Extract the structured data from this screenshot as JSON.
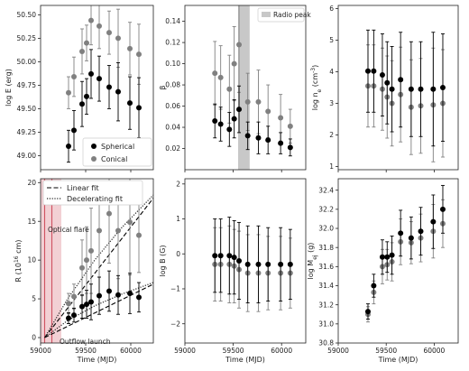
{
  "chart_data": [
    {
      "type": "scatter",
      "panel": "top-left",
      "xlim": [
        59000,
        60250
      ],
      "ylim": [
        48.85,
        50.6
      ],
      "ylabel": "log E (erg)",
      "xlabel": "",
      "yticks": [
        "49.00",
        "49.25",
        "49.50",
        "49.75",
        "50.00",
        "50.25",
        "50.50"
      ],
      "ytick_values": [
        49.0,
        49.25,
        49.5,
        49.75,
        50.0,
        50.25,
        50.5
      ],
      "xticks": [],
      "legend": {
        "position": "bottom-right",
        "entries": [
          "Spherical",
          "Conical"
        ]
      },
      "series": [
        {
          "name": "Spherical",
          "color": "#000000",
          "x": [
            59310,
            59370,
            59460,
            59510,
            59560,
            59650,
            59760,
            59860,
            59990,
            60090
          ],
          "y": [
            49.1,
            49.27,
            49.55,
            49.63,
            49.87,
            49.82,
            49.73,
            49.68,
            49.56,
            49.51
          ],
          "err": [
            0.17,
            0.21,
            0.24,
            0.19,
            0.26,
            0.24,
            0.23,
            0.31,
            0.28,
            0.32
          ]
        },
        {
          "name": "Conical",
          "color": "#808080",
          "x": [
            59310,
            59370,
            59460,
            59510,
            59560,
            59650,
            59760,
            59860,
            59990,
            60090
          ],
          "y": [
            49.67,
            49.84,
            50.11,
            50.2,
            50.44,
            50.38,
            50.31,
            50.25,
            50.14,
            50.08
          ],
          "err": [
            0.17,
            0.21,
            0.24,
            0.19,
            0.26,
            0.24,
            0.23,
            0.31,
            0.28,
            0.32
          ]
        }
      ]
    },
    {
      "type": "scatter",
      "panel": "top-middle",
      "xlim": [
        59000,
        60250
      ],
      "ylim": [
        0.0,
        0.155
      ],
      "ylabel": "β",
      "xlabel": "",
      "yticks": [
        "0.02",
        "0.04",
        "0.06",
        "0.08",
        "0.10",
        "0.12",
        "0.14"
      ],
      "ytick_values": [
        0.02,
        0.04,
        0.06,
        0.08,
        0.1,
        0.12,
        0.14
      ],
      "xticks": [],
      "band": {
        "x0": 59550,
        "x1": 59670,
        "color": "#c8c8c8",
        "label": "Radio peak"
      },
      "legend": {
        "position": "top-right",
        "entries": [
          "Radio peak"
        ]
      },
      "series": [
        {
          "name": "Spherical",
          "color": "#000000",
          "x": [
            59310,
            59370,
            59460,
            59510,
            59560,
            59650,
            59760,
            59860,
            59990,
            60090
          ],
          "y": [
            0.046,
            0.043,
            0.038,
            0.048,
            0.057,
            0.032,
            0.03,
            0.028,
            0.025,
            0.021
          ],
          "err": [
            0.016,
            0.016,
            0.016,
            0.018,
            0.022,
            0.013,
            0.015,
            0.013,
            0.01,
            0.008
          ]
        },
        {
          "name": "Conical",
          "color": "#808080",
          "x": [
            59310,
            59370,
            59460,
            59510,
            59560,
            59650,
            59760,
            59860,
            59990,
            60090
          ],
          "y": [
            0.091,
            0.087,
            0.076,
            0.1,
            0.118,
            0.064,
            0.064,
            0.055,
            0.049,
            0.041
          ],
          "err": [
            0.03,
            0.03,
            0.032,
            0.035,
            0.045,
            0.027,
            0.03,
            0.025,
            0.022,
            0.016
          ]
        }
      ]
    },
    {
      "type": "scatter",
      "panel": "top-right",
      "xlim": [
        59000,
        60250
      ],
      "ylim": [
        0.9,
        6.1
      ],
      "ylabel": "log n_e (cm^-3)",
      "xlabel": "",
      "yticks": [
        "1",
        "2",
        "3",
        "4",
        "5",
        "6"
      ],
      "ytick_values": [
        1,
        2,
        3,
        4,
        5,
        6
      ],
      "xticks": [],
      "series": [
        {
          "name": "Spherical",
          "color": "#000000",
          "x": [
            59310,
            59370,
            59460,
            59510,
            59560,
            59650,
            59760,
            59860,
            59990,
            60090
          ],
          "y": [
            4.02,
            4.02,
            3.9,
            3.65,
            3.45,
            3.75,
            3.45,
            3.45,
            3.45,
            3.5
          ],
          "err": [
            1.3,
            1.3,
            1.3,
            1.3,
            1.35,
            1.5,
            1.5,
            1.5,
            1.8,
            1.7
          ]
        },
        {
          "name": "Conical",
          "color": "#808080",
          "x": [
            59310,
            59370,
            59460,
            59510,
            59560,
            59650,
            59760,
            59860,
            59990,
            60090
          ],
          "y": [
            3.55,
            3.55,
            3.45,
            3.2,
            3.0,
            3.28,
            2.88,
            2.92,
            2.95,
            3.0
          ],
          "err": [
            1.3,
            1.3,
            1.3,
            1.3,
            1.35,
            1.5,
            1.5,
            1.5,
            1.8,
            1.7
          ]
        }
      ]
    },
    {
      "type": "scatter",
      "panel": "bottom-left",
      "xlim": [
        59000,
        60250
      ],
      "ylim": [
        -0.7,
        20.5
      ],
      "ylabel": "R (10^16 cm)",
      "xlabel": "Time (MJD)",
      "yticks": [
        "0",
        "5",
        "10",
        "15",
        "20"
      ],
      "ytick_values": [
        0,
        5,
        10,
        15,
        20
      ],
      "xticks": [
        "59000",
        "59500",
        "60000"
      ],
      "xtick_values": [
        59000,
        59500,
        60000
      ],
      "band": {
        "x0": 59000,
        "x1": 59230,
        "color": "#f2d0d4"
      },
      "vlines": [
        {
          "x": 59045,
          "color": "#d05060",
          "label": "Outflow launch"
        },
        {
          "x": 59125,
          "color": "#d05060",
          "label": "Optical flare"
        }
      ],
      "legend": {
        "position": "top-left",
        "entries": [
          "Linear fit",
          "Decelerating fit"
        ]
      },
      "series": [
        {
          "name": "Spherical",
          "color": "#000000",
          "x": [
            59310,
            59370,
            59460,
            59510,
            59560,
            59650,
            59760,
            59860,
            59990,
            60090
          ],
          "y": [
            2.5,
            2.9,
            4.0,
            4.3,
            4.6,
            5.4,
            6.0,
            5.5,
            5.7,
            5.2
          ],
          "err": [
            0.7,
            0.9,
            1.5,
            1.8,
            2.3,
            2.4,
            2.6,
            2.5,
            2.6,
            1.9
          ]
        },
        {
          "name": "Conical",
          "color": "#808080",
          "x": [
            59310,
            59370,
            59460,
            59510,
            59560,
            59650,
            59760,
            59860,
            59990,
            60090
          ],
          "y": [
            4.4,
            5.3,
            9.0,
            10.0,
            11.2,
            13.8,
            16.0,
            13.8,
            14.9,
            13.2
          ],
          "err": [
            1.3,
            1.6,
            3.6,
            4.3,
            5.5,
            6.0,
            6.4,
            6.2,
            6.8,
            4.8
          ]
        }
      ],
      "fits": [
        {
          "name": "Linear fit",
          "style": "dashed",
          "points": [
            [
              59045,
              0.0
            ],
            [
              60250,
              6.9
            ]
          ]
        },
        {
          "name": "Linear fit",
          "style": "dashed",
          "points": [
            [
              59045,
              0.0
            ],
            [
              60250,
              18.0
            ]
          ]
        },
        {
          "name": "Decelerating fit",
          "style": "dotted",
          "points": [
            [
              59045,
              0.0
            ],
            [
              59300,
              2.2
            ],
            [
              59600,
              4.1
            ],
            [
              59900,
              5.6
            ],
            [
              60250,
              7.1
            ]
          ]
        },
        {
          "name": "Decelerating fit",
          "style": "dotted",
          "points": [
            [
              59045,
              0.0
            ],
            [
              59300,
              5.0
            ],
            [
              59600,
              10.0
            ],
            [
              59900,
              14.2
            ],
            [
              60250,
              18.4
            ]
          ]
        }
      ]
    },
    {
      "type": "scatter",
      "panel": "bottom-middle",
      "xlim": [
        59000,
        60250
      ],
      "ylim": [
        -2.55,
        2.15
      ],
      "ylabel": "log B (G)",
      "xlabel": "Time (MJD)",
      "yticks": [
        "−2",
        "−1",
        "0",
        "1",
        "2"
      ],
      "ytick_values": [
        -2,
        -1,
        0,
        1,
        2
      ],
      "xticks": [
        "59000",
        "59500",
        "60000"
      ],
      "xtick_values": [
        59000,
        59500,
        60000
      ],
      "series": [
        {
          "name": "Spherical",
          "color": "#000000",
          "x": [
            59310,
            59370,
            59460,
            59510,
            59560,
            59650,
            59760,
            59860,
            59990,
            60090
          ],
          "y": [
            -0.05,
            -0.05,
            -0.05,
            -0.1,
            -0.2,
            -0.3,
            -0.3,
            -0.3,
            -0.3,
            -0.3
          ],
          "err": [
            1.05,
            1.05,
            1.1,
            1.05,
            1.1,
            1.1,
            1.1,
            1.05,
            1.05,
            1.0
          ]
        },
        {
          "name": "Conical",
          "color": "#808080",
          "x": [
            59310,
            59370,
            59460,
            59510,
            59560,
            59650,
            59760,
            59860,
            59990,
            60090
          ],
          "y": [
            -0.3,
            -0.3,
            -0.3,
            -0.35,
            -0.45,
            -0.55,
            -0.55,
            -0.55,
            -0.55,
            -0.55
          ],
          "err": [
            1.05,
            1.05,
            1.1,
            1.05,
            1.1,
            1.1,
            1.1,
            1.05,
            1.05,
            1.0
          ]
        }
      ]
    },
    {
      "type": "scatter",
      "panel": "bottom-right",
      "xlim": [
        59000,
        60250
      ],
      "ylim": [
        30.8,
        32.52
      ],
      "ylabel": "log M_ej (g)",
      "xlabel": "Time (MJD)",
      "yticks": [
        "30.8",
        "31.0",
        "31.2",
        "31.4",
        "31.6",
        "31.8",
        "32.0",
        "32.2",
        "32.4"
      ],
      "ytick_values": [
        30.8,
        31.0,
        31.2,
        31.4,
        31.6,
        31.8,
        32.0,
        32.2,
        32.4
      ],
      "xticks": [
        "59000",
        "59500",
        "60000"
      ],
      "xtick_values": [
        59000,
        59500,
        60000
      ],
      "series": [
        {
          "name": "Spherical",
          "color": "#000000",
          "x": [
            59310,
            59370,
            59460,
            59510,
            59560,
            59650,
            59760,
            59860,
            59990,
            60090
          ],
          "y": [
            31.13,
            31.4,
            31.7,
            31.7,
            31.72,
            31.95,
            31.9,
            31.97,
            32.07,
            32.2
          ],
          "err": [
            0.08,
            0.12,
            0.18,
            0.16,
            0.2,
            0.24,
            0.22,
            0.25,
            0.28,
            0.25
          ]
        },
        {
          "name": "Conical",
          "color": "#808080",
          "x": [
            59310,
            59370,
            59460,
            59510,
            59560,
            59650,
            59760,
            59860,
            59990,
            60090
          ],
          "y": [
            31.1,
            31.33,
            31.6,
            31.62,
            31.65,
            31.86,
            31.85,
            31.9,
            31.97,
            32.05
          ],
          "err": [
            0.08,
            0.12,
            0.18,
            0.16,
            0.2,
            0.24,
            0.22,
            0.25,
            0.28,
            0.25
          ]
        }
      ]
    }
  ]
}
